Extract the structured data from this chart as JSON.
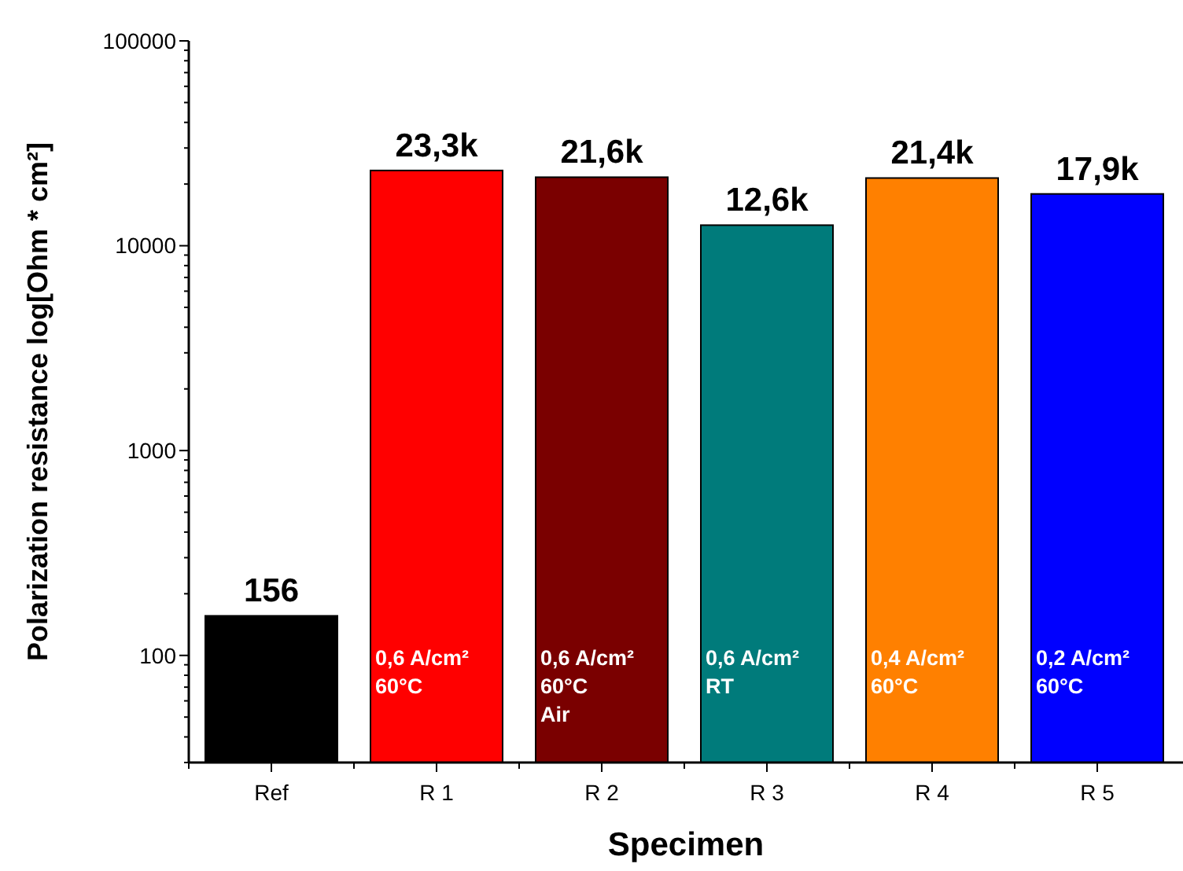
{
  "chart_data": {
    "type": "bar",
    "xlabel": "Specimen",
    "ylabel": "Polarization resistance log[Ohm * cm²]",
    "categories": [
      "Ref",
      "R 1",
      "R 2",
      "R 3",
      "R 4",
      "R 5"
    ],
    "values": [
      156,
      23300,
      21600,
      12600,
      21400,
      17900
    ],
    "colors": [
      "#000000",
      "#ff0000",
      "#7a0000",
      "#007b7b",
      "#ff8000",
      "#0000ff"
    ],
    "value_labels": [
      "156",
      "23,3k",
      "21,6k",
      "12,6k",
      "21,4k",
      "17,9k"
    ],
    "log": true,
    "ylim": [
      30,
      100000
    ],
    "yticks": [
      {
        "value": 30,
        "label": null
      },
      {
        "value": 40,
        "label": null
      },
      {
        "value": 50,
        "label": null
      },
      {
        "value": 60,
        "label": null
      },
      {
        "value": 70,
        "label": null
      },
      {
        "value": 80,
        "label": null
      },
      {
        "value": 90,
        "label": null
      },
      100,
      {
        "value": 200,
        "label": null
      },
      {
        "value": 300,
        "label": null
      },
      {
        "value": 400,
        "label": null
      },
      {
        "value": 500,
        "label": null
      },
      {
        "value": 600,
        "label": null
      },
      {
        "value": 700,
        "label": null
      },
      {
        "value": 800,
        "label": null
      },
      {
        "value": 900,
        "label": null
      },
      1000,
      {
        "value": 2000,
        "label": null
      },
      {
        "value": 3000,
        "label": null
      },
      {
        "value": 4000,
        "label": null
      },
      {
        "value": 5000,
        "label": null
      },
      {
        "value": 6000,
        "label": null
      },
      {
        "value": 7000,
        "label": null
      },
      {
        "value": 8000,
        "label": null
      },
      {
        "value": 9000,
        "label": null
      },
      10000,
      {
        "value": 20000,
        "label": null
      },
      {
        "value": 30000,
        "label": null
      },
      {
        "value": 40000,
        "label": null
      },
      {
        "value": 50000,
        "label": null
      },
      {
        "value": 60000,
        "label": null
      },
      {
        "value": 70000,
        "label": null
      },
      {
        "value": 80000,
        "label": null
      },
      {
        "value": 90000,
        "label": null
      },
      100000
    ],
    "annotations": [
      "0,6 A/cm²\n60°C",
      "0,6 A/cm²\n60°C\nAir",
      "0,6 A/cm²\nRT",
      "0,4 A/cm²\n60°C",
      "0,2 A/cm²\n60°C"
    ],
    "grid": false
  }
}
